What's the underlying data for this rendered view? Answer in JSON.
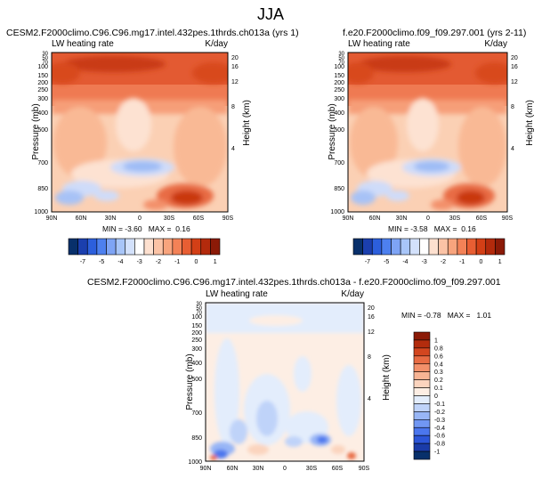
{
  "page_title": "JJA",
  "chart_data": [
    {
      "type": "heatmap",
      "title": "CESM2.F2000climo.C96.C96.mg17.intel.432pes.1thrds.ch013a (yrs 1)",
      "left_string": "LW heating rate",
      "right_string": "K/day",
      "ylabel": "Pressure (mb)",
      "ylabel_right": "Height (km)",
      "x_ticks": [
        "90N",
        "60N",
        "30N",
        "0",
        "30S",
        "60S",
        "90S"
      ],
      "y_ticks": [
        "30",
        "50",
        "70",
        "100",
        "150",
        "200",
        "250",
        "300",
        "400",
        "500",
        "700",
        "850",
        "1000"
      ],
      "y_ticks_right": [
        "20",
        "16",
        "12",
        "8",
        "4"
      ],
      "stats": "MIN = -3.60   MAX =  0.16",
      "colorbar_ticks": [
        "-7",
        "-5",
        "-4",
        "-3",
        "-2",
        "-1",
        "0",
        "1"
      ],
      "colorbar_orientation": "horizontal"
    },
    {
      "type": "heatmap",
      "title": "f.e20.F2000climo.f09_f09.297.001 (yrs 2-11)",
      "left_string": "LW heating rate",
      "right_string": "K/day",
      "ylabel": "Pressure (mb)",
      "ylabel_right": "Height (km)",
      "x_ticks": [
        "90N",
        "60N",
        "30N",
        "0",
        "30S",
        "60S",
        "90S"
      ],
      "y_ticks": [
        "30",
        "50",
        "70",
        "100",
        "150",
        "200",
        "250",
        "300",
        "400",
        "500",
        "700",
        "850",
        "1000"
      ],
      "y_ticks_right": [
        "20",
        "16",
        "12",
        "8",
        "4"
      ],
      "stats": "MIN = -3.58   MAX =  0.16",
      "colorbar_ticks": [
        "-7",
        "-5",
        "-4",
        "-3",
        "-2",
        "-1",
        "0",
        "1"
      ],
      "colorbar_orientation": "horizontal"
    },
    {
      "type": "heatmap",
      "title": "CESM2.F2000climo.C96.C96.mg17.intel.432pes.1thrds.ch013a - f.e20.F2000climo.f09_f09.297.001",
      "left_string": "LW heating rate",
      "right_string": "K/day",
      "ylabel": "Pressure (mb)",
      "ylabel_right": "Height (km)",
      "x_ticks": [
        "90N",
        "60N",
        "30N",
        "0",
        "30S",
        "60S",
        "90S"
      ],
      "y_ticks": [
        "30",
        "50",
        "70",
        "100",
        "150",
        "200",
        "250",
        "300",
        "400",
        "500",
        "700",
        "850",
        "1000"
      ],
      "y_ticks_right": [
        "20",
        "16",
        "12",
        "8",
        "4"
      ],
      "stats": "MIN = -0.78   MAX =   1.01",
      "colorbar_ticks": [
        "1",
        "0.8",
        "0.6",
        "0.4",
        "0.3",
        "0.2",
        "0.1",
        "0",
        "-0.1",
        "-0.2",
        "-0.3",
        "-0.4",
        "-0.6",
        "-0.8",
        "-1"
      ],
      "colorbar_orientation": "vertical"
    }
  ],
  "colors": {
    "main_scale": [
      "#08306b",
      "#1b3fae",
      "#2c5fdc",
      "#4d80ef",
      "#7ea4f5",
      "#a8c5f8",
      "#d3e1fb",
      "#ffffff",
      "#fde0cf",
      "#fbc3a6",
      "#f8a47d",
      "#f38257",
      "#e85e33",
      "#d33f16",
      "#b32a0c",
      "#8b1a07"
    ],
    "diff_scale": [
      "#08306b",
      "#1a3ba8",
      "#2c55d8",
      "#4b76ee",
      "#7197f3",
      "#98b6f6",
      "#bfd3f9",
      "#e3edfc",
      "#fdeee4",
      "#fbd4be",
      "#f8b494",
      "#f3906a",
      "#e86b43",
      "#d3461f",
      "#b32c0d",
      "#8b1a07"
    ]
  }
}
